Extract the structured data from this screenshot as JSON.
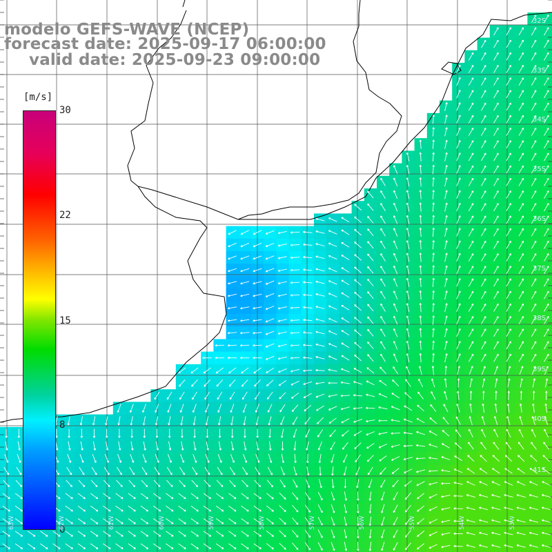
{
  "title": {
    "line1": "modelo GEFS-WAVE (NCEP)",
    "line2": "forecast date: 2025-09-17 06:00:00",
    "line3": "valid date: 2025-09-23 09:00:00"
  },
  "colorbar": {
    "unit": "[m/s]",
    "ticks": [
      "30",
      "22",
      "15",
      "8",
      "0"
    ],
    "tick_values": [
      30,
      22,
      15,
      8,
      0
    ],
    "colors": [
      "#0000ff",
      "#00a0ff",
      "#00f0ff",
      "#00dc00",
      "#ffff00",
      "#ff6400",
      "#ff0000",
      "#c8007a"
    ]
  },
  "map": {
    "lat_labels": [
      "32S",
      "33S",
      "34S",
      "35S",
      "36S",
      "37S",
      "38S",
      "39S",
      "40S",
      "41S"
    ],
    "lon_labels": [
      "63W",
      "62W",
      "61W",
      "60W",
      "59W",
      "58W",
      "57W",
      "56W",
      "55W",
      "54W",
      "53W"
    ],
    "land_color": "#ffffff",
    "coast_color": "#000000",
    "grid_color": "#505050",
    "arrow_color": "#ffffff"
  }
}
